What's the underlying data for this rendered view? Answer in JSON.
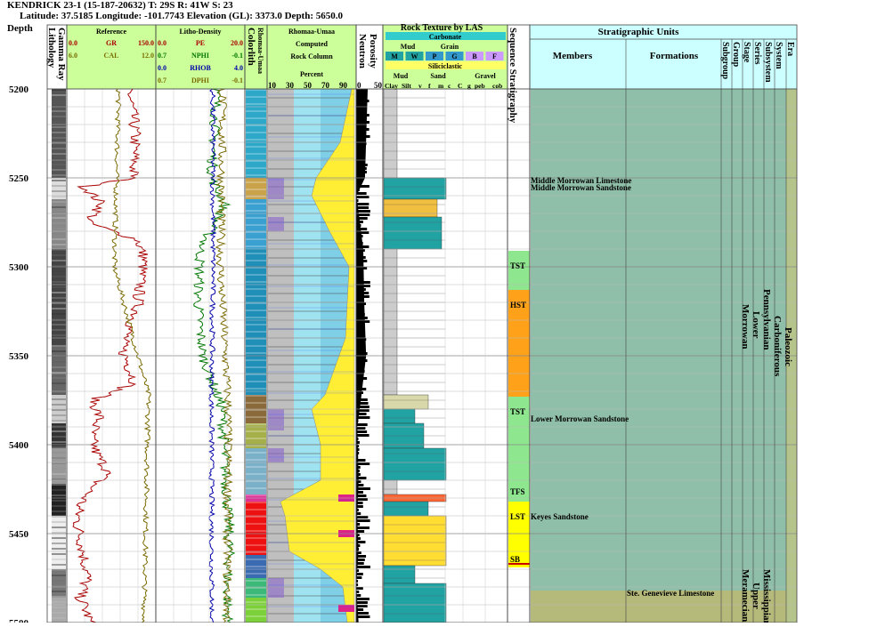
{
  "header": {
    "line1": "KENDRICK 23-1 (15-187-20632) T: 29S R: 41W S: 23",
    "line2": "Latitude: 37.5185 Longitude: -101.7743 Elevation (GL): 3373.0 Depth: 5650.0"
  },
  "columns": {
    "depth": "Depth",
    "lithology": "Lithology",
    "gamma_ray": "Gamma Ray",
    "reference": "Reference",
    "litho_density": "Litho-Density",
    "colorlith": "Colorlith",
    "rhomaa_umaa_vert": "Rhomaa-Umaa",
    "rhomaa_umaa": "Rhomaa-Umaa",
    "computed": "Computed",
    "rock_column": "Rock Column",
    "percent": "Percent",
    "neutron": "Neutron",
    "porosity": "Porosity",
    "rock_texture": "Rock Texture by LAS",
    "sequence_stratigraphy": "Sequence Stratigraphy",
    "stratigraphic_units": "Stratigraphic Units",
    "members": "Members",
    "formations": "Formations"
  },
  "reference_curves": [
    {
      "name": "GR",
      "min": "0.0",
      "max": "150.0",
      "color": "#aa0000"
    },
    {
      "name": "CAL",
      "min": "6.0",
      "max": "12.0",
      "color": "#7a6a00"
    }
  ],
  "density_curves": [
    {
      "name": "PE",
      "min": "0.0",
      "max": "20.0",
      "color": "#aa0000"
    },
    {
      "name": "NPHI",
      "min": "0.7",
      "max": "-0.1",
      "color": "#007700"
    },
    {
      "name": "RHOB",
      "min": "0.0",
      "max": "4.0",
      "color": "#0000aa"
    },
    {
      "name": "DPHI",
      "min": "0.7",
      "max": "-0.1",
      "color": "#7a6a00"
    }
  ],
  "percent_ticks": [
    "10",
    "30",
    "50",
    "70",
    "90"
  ],
  "porosity_ticks": [
    "0",
    "50"
  ],
  "texture": {
    "carbonate": "Carbonate",
    "mud": "Mud",
    "grain": "Grain",
    "carb_codes": [
      "M",
      "W",
      "P",
      "G",
      "B",
      "F"
    ],
    "siliciclastic": "Siliciclastic",
    "sand": "Sand",
    "gravel": "Gravel",
    "clastic_codes": [
      "Clay",
      "Silt",
      "v",
      "f",
      "m",
      "c",
      "C",
      "g",
      "peb",
      "cob"
    ]
  },
  "rank_labels": [
    "Subgroup",
    "Group",
    "Stage",
    "Series",
    "Subsystem",
    "System",
    "Era"
  ],
  "depth_ticks": [
    5200,
    5250,
    5300,
    5350,
    5400,
    5450,
    5500
  ],
  "depth_range": [
    5200,
    5500
  ],
  "sequences": [
    {
      "label": "TST",
      "top": 5291,
      "base": 5313,
      "color": "#8ee68e"
    },
    {
      "label": "HST",
      "top": 5313,
      "base": 5373,
      "color": "#ffa21a"
    },
    {
      "label": "TST",
      "top": 5373,
      "base": 5428,
      "color": "#8ee68e"
    },
    {
      "label": "TFS",
      "top": 5428,
      "base": 5432,
      "color": "#8ee68e"
    },
    {
      "label": "LST",
      "top": 5432,
      "base": 5466,
      "color": "#ffff00"
    },
    {
      "label": "SB",
      "top": 5466,
      "base": 5469,
      "color": "#ffff00"
    }
  ],
  "members": [
    {
      "name": "Middle Morrowan Limestone",
      "depth": 5253
    },
    {
      "name": "Middle Morrowan Sandstone",
      "depth": 5257
    },
    {
      "name": "Lower Morrowan Sandstone",
      "depth": 5387
    },
    {
      "name": "Keyes Sandstone",
      "depth": 5442
    }
  ],
  "formations": [
    {
      "name": "Ste. Genevieve Limestone",
      "depth": 5484
    }
  ],
  "units": {
    "pennsylvanian": {
      "series": "Morrowan",
      "stage": "Lower",
      "subsystem": "Pennsylvanian",
      "system": "Carboniferous",
      "era": "Paleozoic",
      "color": "#8fbfa8",
      "top": 5200,
      "base": 5482
    },
    "mississippian": {
      "series": "Meramecian",
      "stage": "Upper",
      "subsystem": "Mississippian",
      "color": "#b5b97a",
      "top": 5482,
      "base": 5500
    }
  },
  "chart_data": {
    "type": "line",
    "title": "KENDRICK 23-1 (15-187-20632) T: 29S R: 41W S: 23",
    "y_axis": "Depth",
    "ylim": [
      5200,
      5500
    ],
    "x_tracks": [
      {
        "name": "GR",
        "range": [
          0,
          150
        ],
        "depth": [
          5200,
          5225,
          5250,
          5255,
          5265,
          5275,
          5285,
          5295,
          5305,
          5325,
          5345,
          5365,
          5375,
          5385,
          5395,
          5405,
          5415,
          5425,
          5435,
          5445,
          5455,
          5465,
          5475,
          5485,
          5500
        ],
        "values": [
          105,
          115,
          112,
          30,
          60,
          35,
          120,
          130,
          125,
          118,
          92,
          115,
          45,
          55,
          40,
          50,
          70,
          40,
          20,
          18,
          25,
          30,
          35,
          22,
          40
        ]
      },
      {
        "name": "NPHI",
        "range": [
          0.7,
          -0.1
        ],
        "depth": [
          5200,
          5250,
          5265,
          5290,
          5320,
          5350,
          5380,
          5400,
          5420,
          5440,
          5460,
          5480,
          5500
        ],
        "values": [
          0.15,
          0.2,
          0.08,
          0.3,
          0.32,
          0.28,
          0.1,
          0.09,
          0.07,
          0.05,
          0.04,
          0.06,
          0.05
        ]
      },
      {
        "name": "Neutron porosity (shaded)",
        "range": [
          0,
          50
        ],
        "depth": [
          5200,
          5250,
          5260,
          5290,
          5320,
          5350,
          5375,
          5390,
          5420,
          5440,
          5460,
          5480,
          5500
        ],
        "values": [
          20,
          18,
          4,
          15,
          18,
          22,
          8,
          4,
          3,
          2,
          3,
          2,
          2
        ]
      }
    ]
  }
}
